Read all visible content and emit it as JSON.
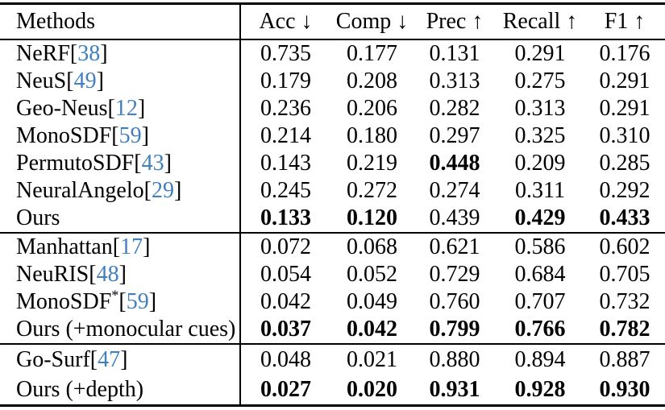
{
  "table": {
    "headers": [
      {
        "label": "Methods",
        "arrow": ""
      },
      {
        "label": "Acc",
        "arrow": "↓"
      },
      {
        "label": "Comp",
        "arrow": "↓"
      },
      {
        "label": "Prec",
        "arrow": "↑"
      },
      {
        "label": "Recall",
        "arrow": "↑"
      },
      {
        "label": "F1",
        "arrow": "↑"
      }
    ],
    "sections": [
      {
        "name": "baselines",
        "rows": [
          {
            "method": "NeRF",
            "sup": "",
            "cite": "38",
            "values": [
              {
                "text": "0.735",
                "bold": false
              },
              {
                "text": "0.177",
                "bold": false
              },
              {
                "text": "0.131",
                "bold": false
              },
              {
                "text": "0.291",
                "bold": false
              },
              {
                "text": "0.176",
                "bold": false
              }
            ]
          },
          {
            "method": "NeuS",
            "sup": "",
            "cite": "49",
            "values": [
              {
                "text": "0.179",
                "bold": false
              },
              {
                "text": "0.208",
                "bold": false
              },
              {
                "text": "0.313",
                "bold": false
              },
              {
                "text": "0.275",
                "bold": false
              },
              {
                "text": "0.291",
                "bold": false
              }
            ]
          },
          {
            "method": "Geo-Neus",
            "sup": "",
            "cite": "12",
            "values": [
              {
                "text": "0.236",
                "bold": false
              },
              {
                "text": "0.206",
                "bold": false
              },
              {
                "text": "0.282",
                "bold": false
              },
              {
                "text": "0.313",
                "bold": false
              },
              {
                "text": "0.291",
                "bold": false
              }
            ]
          },
          {
            "method": "MonoSDF",
            "sup": "",
            "cite": "59",
            "values": [
              {
                "text": "0.214",
                "bold": false
              },
              {
                "text": "0.180",
                "bold": false
              },
              {
                "text": "0.297",
                "bold": false
              },
              {
                "text": "0.325",
                "bold": false
              },
              {
                "text": "0.310",
                "bold": false
              }
            ]
          },
          {
            "method": "PermutoSDF",
            "sup": "",
            "cite": "43",
            "values": [
              {
                "text": "0.143",
                "bold": false
              },
              {
                "text": "0.219",
                "bold": false
              },
              {
                "text": "0.448",
                "bold": true
              },
              {
                "text": "0.209",
                "bold": false
              },
              {
                "text": "0.285",
                "bold": false
              }
            ]
          },
          {
            "method": "NeuralAngelo",
            "sup": "",
            "cite": "29",
            "values": [
              {
                "text": "0.245",
                "bold": false
              },
              {
                "text": "0.272",
                "bold": false
              },
              {
                "text": "0.274",
                "bold": false
              },
              {
                "text": "0.311",
                "bold": false
              },
              {
                "text": "0.292",
                "bold": false
              }
            ]
          },
          {
            "method": "Ours",
            "sup": "",
            "cite": "",
            "values": [
              {
                "text": "0.133",
                "bold": true
              },
              {
                "text": "0.120",
                "bold": true
              },
              {
                "text": "0.439",
                "bold": false
              },
              {
                "text": "0.429",
                "bold": true
              },
              {
                "text": "0.433",
                "bold": true
              }
            ]
          }
        ]
      },
      {
        "name": "monocular-cues",
        "rows": [
          {
            "method": "Manhattan",
            "sup": "",
            "cite": "17",
            "values": [
              {
                "text": "0.072",
                "bold": false
              },
              {
                "text": "0.068",
                "bold": false
              },
              {
                "text": "0.621",
                "bold": false
              },
              {
                "text": "0.586",
                "bold": false
              },
              {
                "text": "0.602",
                "bold": false
              }
            ]
          },
          {
            "method": "NeuRIS",
            "sup": "",
            "cite": "48",
            "values": [
              {
                "text": "0.054",
                "bold": false
              },
              {
                "text": "0.052",
                "bold": false
              },
              {
                "text": "0.729",
                "bold": false
              },
              {
                "text": "0.684",
                "bold": false
              },
              {
                "text": "0.705",
                "bold": false
              }
            ]
          },
          {
            "method": "MonoSDF",
            "sup": "*",
            "cite": "59",
            "values": [
              {
                "text": "0.042",
                "bold": false
              },
              {
                "text": "0.049",
                "bold": false
              },
              {
                "text": "0.760",
                "bold": false
              },
              {
                "text": "0.707",
                "bold": false
              },
              {
                "text": "0.732",
                "bold": false
              }
            ]
          },
          {
            "method": "Ours (+monocular cues)",
            "sup": "",
            "cite": "",
            "values": [
              {
                "text": "0.037",
                "bold": true
              },
              {
                "text": "0.042",
                "bold": true
              },
              {
                "text": "0.799",
                "bold": true
              },
              {
                "text": "0.766",
                "bold": true
              },
              {
                "text": "0.782",
                "bold": true
              }
            ]
          }
        ]
      },
      {
        "name": "depth",
        "rows": [
          {
            "method": "Go-Surf",
            "sup": "",
            "cite": "47",
            "values": [
              {
                "text": "0.048",
                "bold": false
              },
              {
                "text": "0.021",
                "bold": false
              },
              {
                "text": "0.880",
                "bold": false
              },
              {
                "text": "0.894",
                "bold": false
              },
              {
                "text": "0.887",
                "bold": false
              }
            ]
          },
          {
            "method": "Ours (+depth)",
            "sup": "",
            "cite": "",
            "values": [
              {
                "text": "0.027",
                "bold": true
              },
              {
                "text": "0.020",
                "bold": true
              },
              {
                "text": "0.931",
                "bold": true
              },
              {
                "text": "0.928",
                "bold": true
              },
              {
                "text": "0.930",
                "bold": true
              }
            ]
          }
        ]
      }
    ]
  },
  "colors": {
    "citation_blue": "#4180be",
    "text": "#000000",
    "rule": "#000000",
    "background": "#ffffff"
  }
}
